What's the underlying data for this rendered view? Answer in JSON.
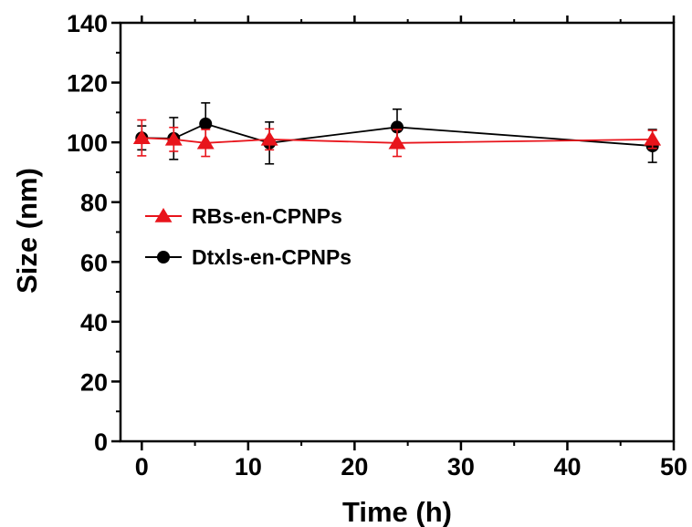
{
  "chart_data": {
    "type": "line",
    "xlabel": "Time (h)",
    "ylabel": "Size (nm)",
    "xlim": [
      -2,
      50
    ],
    "ylim": [
      0,
      140
    ],
    "xticks": [
      0,
      10,
      20,
      30,
      40,
      50
    ],
    "xtick_labels": [
      "0",
      "10",
      "20",
      "30",
      "40",
      "50"
    ],
    "yticks": [
      0,
      20,
      40,
      60,
      80,
      100,
      120,
      140
    ],
    "ytick_labels": [
      "0",
      "20",
      "40",
      "60",
      "80",
      "100",
      "120",
      "140"
    ],
    "grid": false,
    "legend_position": "center-left",
    "series": [
      {
        "name": "RBs-en-CPNPs",
        "color": "#e8141b",
        "marker": "triangle",
        "x": [
          0,
          3,
          6,
          12,
          24,
          48
        ],
        "y": [
          101.5,
          101,
          99.8,
          101,
          99.8,
          101
        ],
        "error": [
          6,
          4,
          4.5,
          3.5,
          4.5,
          3
        ]
      },
      {
        "name": "Dtxls-en-CPNPs",
        "color": "#000000",
        "marker": "circle",
        "x": [
          0,
          3,
          6,
          12,
          24,
          48
        ],
        "y": [
          101.5,
          101.3,
          106.2,
          99.8,
          105.1,
          98.8
        ],
        "error": [
          4,
          7,
          7,
          7,
          6,
          5.5
        ]
      }
    ]
  }
}
